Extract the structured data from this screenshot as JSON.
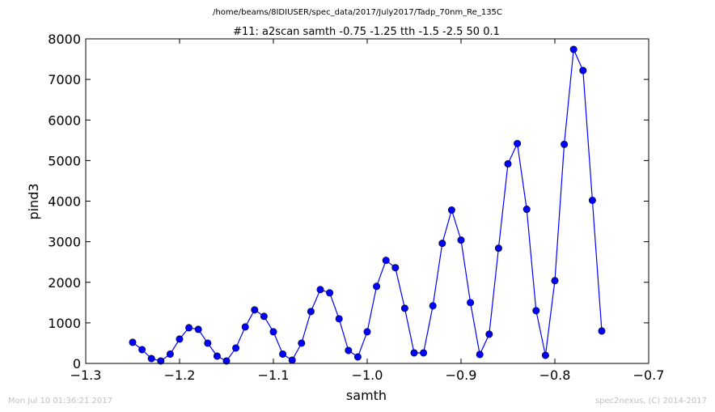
{
  "chart_data": {
    "type": "line",
    "file_path": "/home/beams/8IDIUSER/spec_data/2017/July2017/Tadp_70nm_Re_135C",
    "title": "#11: a2scan  samth -0.75 -1.25  tth -1.5 -2.5  50 0.1",
    "xlabel": "samth",
    "ylabel": "pind3",
    "xlim": [
      -1.3,
      -0.7
    ],
    "ylim": [
      0,
      8000
    ],
    "x_ticks": [
      -1.3,
      -1.2,
      -1.1,
      -1.0,
      -0.9,
      -0.8,
      -0.7
    ],
    "x_tick_labels": [
      "−1.3",
      "−1.2",
      "−1.1",
      "−1.0",
      "−0.9",
      "−0.8",
      "−0.7"
    ],
    "y_ticks": [
      0,
      1000,
      2000,
      3000,
      4000,
      5000,
      6000,
      7000,
      8000
    ],
    "y_tick_labels": [
      "0",
      "1000",
      "2000",
      "3000",
      "4000",
      "5000",
      "6000",
      "7000",
      "8000"
    ],
    "grid": false,
    "series": [
      {
        "color": "#0000ff",
        "marker": "circle",
        "x": [
          -1.25,
          -1.24,
          -1.23,
          -1.22,
          -1.21,
          -1.2,
          -1.19,
          -1.18,
          -1.17,
          -1.16,
          -1.15,
          -1.14,
          -1.13,
          -1.12,
          -1.11,
          -1.1,
          -1.09,
          -1.08,
          -1.07,
          -1.06,
          -1.05,
          -1.04,
          -1.03,
          -1.02,
          -1.01,
          -1.0,
          -0.99,
          -0.98,
          -0.97,
          -0.96,
          -0.95,
          -0.94,
          -0.93,
          -0.92,
          -0.91,
          -0.9,
          -0.89,
          -0.88,
          -0.87,
          -0.86,
          -0.85,
          -0.84,
          -0.83,
          -0.82,
          -0.81,
          -0.8,
          -0.79,
          -0.78,
          -0.77,
          -0.76,
          -0.75
        ],
        "y": [
          520,
          340,
          120,
          60,
          230,
          600,
          880,
          840,
          500,
          180,
          60,
          380,
          900,
          1320,
          1160,
          780,
          230,
          80,
          500,
          1280,
          1820,
          1740,
          1100,
          320,
          160,
          780,
          1900,
          2540,
          2360,
          1360,
          260,
          260,
          1420,
          2960,
          3780,
          3040,
          1500,
          220,
          720,
          2840,
          4920,
          5420,
          3800,
          1300,
          200,
          2040,
          5400,
          7740,
          7220,
          4020,
          800
        ]
      }
    ]
  },
  "footer": {
    "timestamp": "Mon Jul 10 01:36:21 2017",
    "credit": "spec2nexus, (C) 2014-2017"
  }
}
